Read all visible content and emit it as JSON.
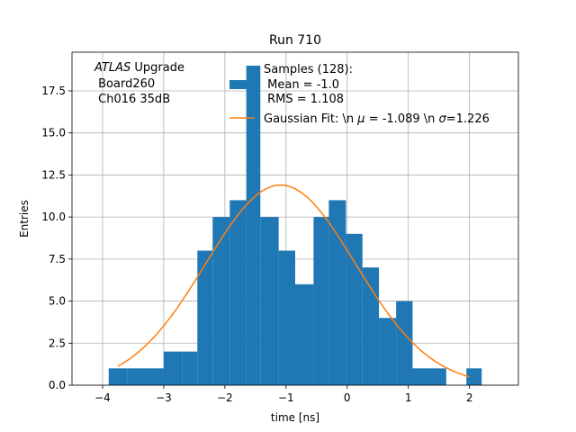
{
  "chart_data": {
    "type": "bar",
    "title": "Run 710",
    "xlabel": "time [ns]",
    "ylabel": "Entries",
    "xlim": [
      -4.5,
      2.8
    ],
    "ylim": [
      0,
      19.8
    ],
    "grid": true,
    "xticks": [
      -4,
      -3,
      -2,
      -1,
      0,
      1,
      2
    ],
    "xtick_labels": [
      "−4",
      "−3",
      "−2",
      "−1",
      "0",
      "1",
      "2"
    ],
    "yticks": [
      0,
      2.5,
      5,
      7.5,
      10,
      12.5,
      15,
      17.5
    ],
    "ytick_labels": [
      "0.0",
      "2.5",
      "5.0",
      "7.5",
      "10.0",
      "12.5",
      "15.0",
      "17.5"
    ],
    "annotation": {
      "italic_part": "ATLAS",
      "line1_rest": " Upgrade",
      "line2": " Board260",
      "line3": " Ch016 35dB"
    },
    "histogram": {
      "name_lines": [
        "Samples (128):",
        " Mean = -1.0",
        " RMS = 1.108"
      ],
      "color": "#1f77b4",
      "bins": [
        {
          "x0": -3.9,
          "x1": -3.6,
          "value": 1
        },
        {
          "x0": -3.6,
          "x1": -3.3,
          "value": 1
        },
        {
          "x0": -3.3,
          "x1": -3.0,
          "value": 1
        },
        {
          "x0": -3.0,
          "x1": -2.7,
          "value": 2
        },
        {
          "x0": -2.7,
          "x1": -2.45,
          "value": 2
        },
        {
          "x0": -2.45,
          "x1": -2.2,
          "value": 8
        },
        {
          "x0": -2.2,
          "x1": -1.92,
          "value": 10
        },
        {
          "x0": -1.92,
          "x1": -1.65,
          "value": 11
        },
        {
          "x0": -1.65,
          "x1": -1.42,
          "value": 19
        },
        {
          "x0": -1.42,
          "x1": -1.12,
          "value": 10
        },
        {
          "x0": -1.12,
          "x1": -0.85,
          "value": 8
        },
        {
          "x0": -0.85,
          "x1": -0.55,
          "value": 6
        },
        {
          "x0": -0.55,
          "x1": -0.3,
          "value": 10
        },
        {
          "x0": -0.3,
          "x1": -0.02,
          "value": 11
        },
        {
          "x0": -0.02,
          "x1": 0.25,
          "value": 9
        },
        {
          "x0": 0.25,
          "x1": 0.52,
          "value": 7
        },
        {
          "x0": 0.52,
          "x1": 0.8,
          "value": 4
        },
        {
          "x0": 0.8,
          "x1": 1.07,
          "value": 5
        },
        {
          "x0": 1.07,
          "x1": 1.35,
          "value": 1
        },
        {
          "x0": 1.35,
          "x1": 1.62,
          "value": 1
        },
        {
          "x0": 1.95,
          "x1": 2.2,
          "value": 1
        }
      ]
    },
    "fit": {
      "label_prefix": "Gaussian Fit: \\n ",
      "label_mu_symbol": "μ",
      "label_mid": " = -1.089 \\n ",
      "label_sigma_symbol": "σ",
      "label_suffix": "=1.226",
      "color": "#ff7f0e",
      "mu": -1.089,
      "sigma": 1.226,
      "amplitude": 11.9,
      "x_range": [
        -3.75,
        2.0
      ]
    },
    "legend_position": "upper center"
  }
}
